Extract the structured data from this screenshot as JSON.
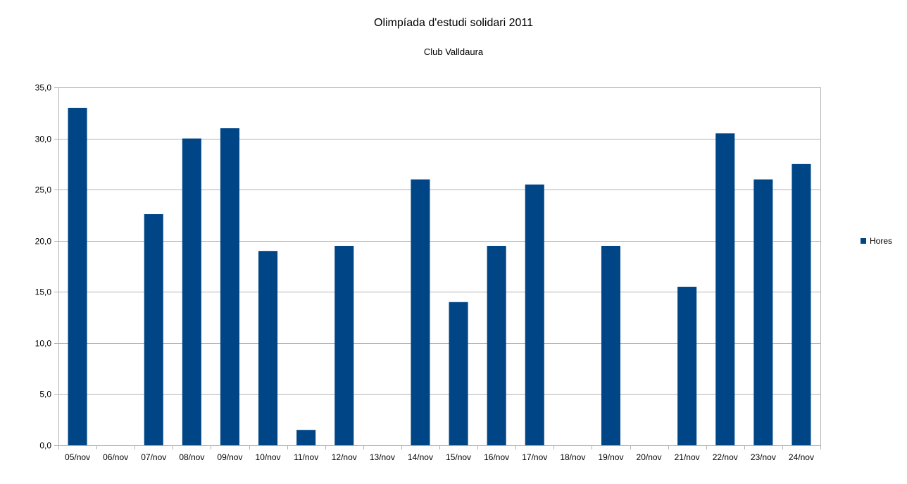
{
  "chart_data": {
    "type": "bar",
    "title": "Olimpíada d'estudi solidari 2011",
    "subtitle": "Club Valldaura",
    "xlabel": "",
    "ylabel": "",
    "ylim": [
      0,
      35
    ],
    "y_ticks": [
      "0,0",
      "5,0",
      "10,0",
      "15,0",
      "20,0",
      "25,0",
      "30,0",
      "35,0"
    ],
    "categories": [
      "05/nov",
      "06/nov",
      "07/nov",
      "08/nov",
      "09/nov",
      "10/nov",
      "11/nov",
      "12/nov",
      "13/nov",
      "14/nov",
      "15/nov",
      "16/nov",
      "17/nov",
      "18/nov",
      "19/nov",
      "20/nov",
      "21/nov",
      "22/nov",
      "23/nov",
      "24/nov"
    ],
    "series": [
      {
        "name": "Hores",
        "color": "#004586",
        "values": [
          33,
          0,
          22.6,
          30,
          31,
          19,
          1.5,
          19.5,
          0,
          26,
          14,
          19.5,
          25.5,
          0,
          19.5,
          0,
          15.5,
          30.5,
          26,
          27.5
        ]
      }
    ],
    "grid": true,
    "legend_position": "right"
  }
}
